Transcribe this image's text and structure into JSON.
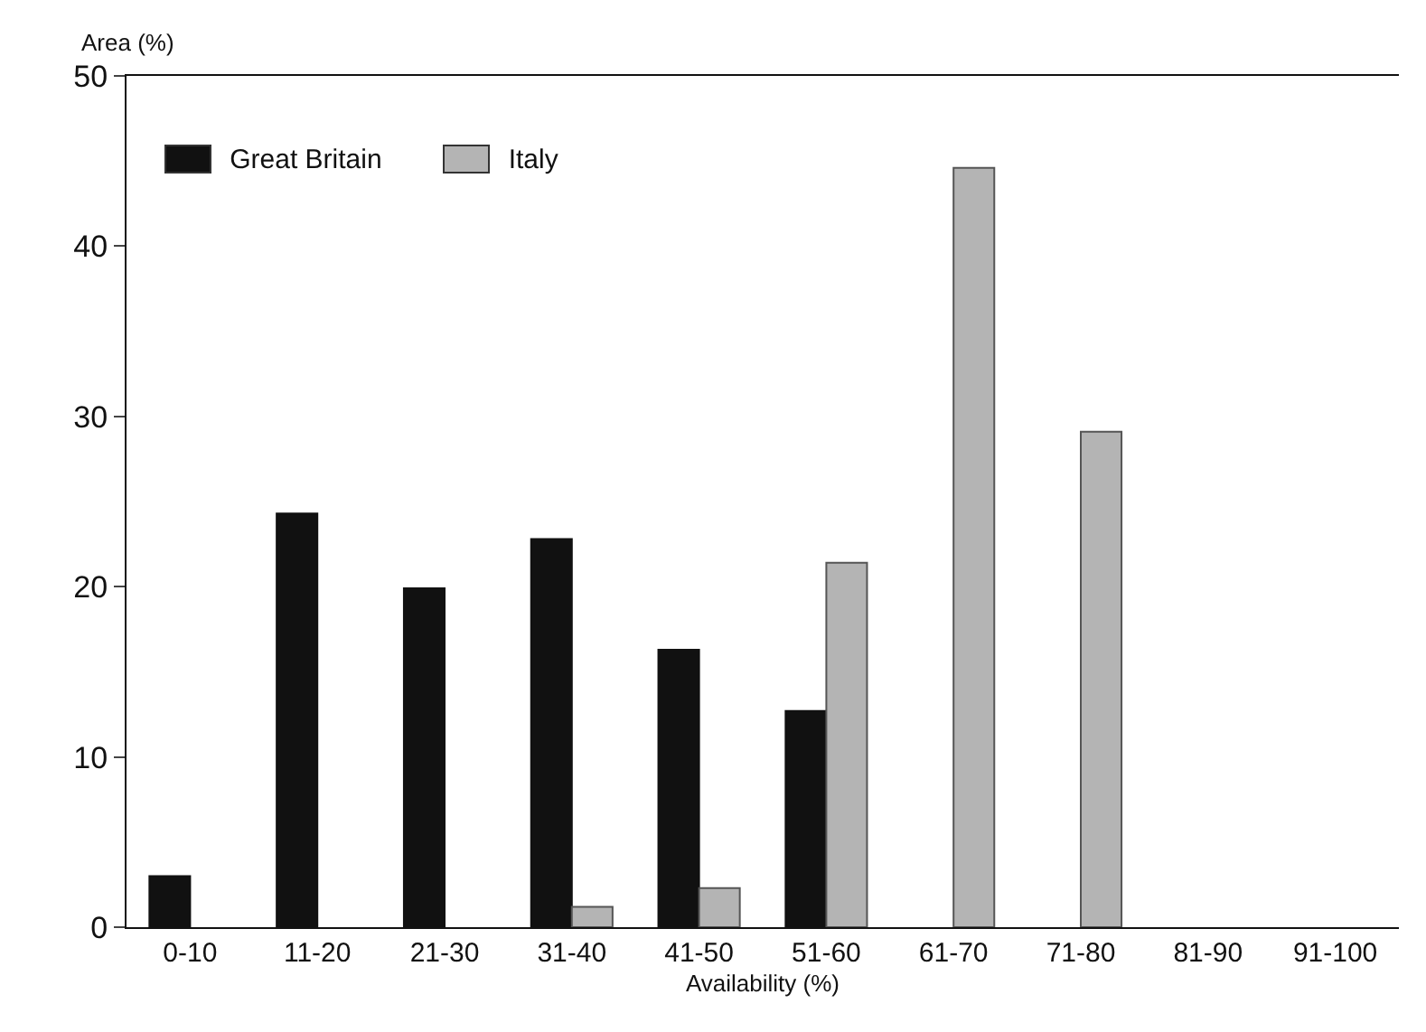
{
  "chart_data": {
    "type": "bar",
    "xlabel": "Availability (%)",
    "ylabel": "Area (%)",
    "categories": [
      "0-10",
      "11-20",
      "21-30",
      "31-40",
      "41-50",
      "51-60",
      "61-70",
      "71-80",
      "81-90",
      "91-100"
    ],
    "series": [
      {
        "name": "Great Britain",
        "color": "#111111",
        "values": [
          3.0,
          24.3,
          19.9,
          22.8,
          16.3,
          12.7,
          null,
          null,
          null,
          null
        ]
      },
      {
        "name": "Italy",
        "color": "#b4b4b4",
        "values": [
          null,
          null,
          null,
          1.2,
          2.3,
          21.4,
          44.6,
          29.1,
          null,
          null
        ]
      }
    ],
    "ylim": [
      0,
      50
    ],
    "yticks": [
      0,
      10,
      20,
      30,
      40,
      50
    ],
    "grid": false,
    "legend": "top left"
  }
}
